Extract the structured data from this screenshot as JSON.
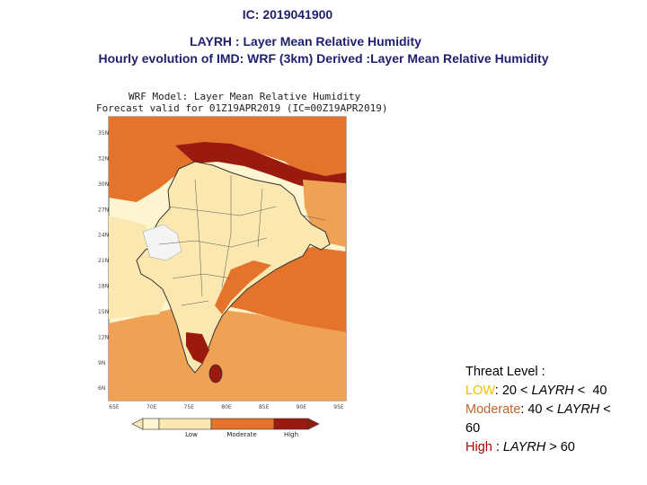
{
  "header": {
    "ic": "IC: 2019041900",
    "title1": "LAYRH : Layer Mean Relative Humidity",
    "title2": "Hourly evolution of IMD: WRF (3km) Derived :Layer Mean Relative Humidity"
  },
  "map": {
    "title_line1": "WRF Model: Layer Mean Relative Humidity",
    "title_line2": "Forecast valid for 01Z19APR2019 (IC=00Z19APR2019)",
    "lat_labels": [
      "35N",
      "32N",
      "30N",
      "27N",
      "24N",
      "21N",
      "18N",
      "15N",
      "12N",
      "9N",
      "6N"
    ],
    "lon_labels": [
      "65E",
      "70E",
      "75E",
      "80E",
      "85E",
      "90E",
      "95E"
    ],
    "legend": [
      {
        "label": "Low",
        "color": "#fbe8b0"
      },
      {
        "label": "Moderate",
        "color": "#e4742c"
      },
      {
        "label": "High",
        "color": "#9a1a10"
      }
    ],
    "colors": {
      "very_low": "#fff5d0",
      "low": "#f6d69a",
      "moderate": "#e4742c",
      "moderate_light": "#f0a254",
      "high": "#9a1a10",
      "dry_white": "#f4f4f4"
    }
  },
  "threat": {
    "heading": "Threat Level :",
    "low_word": "LOW",
    "low_rest": ": 20 < ",
    "var_name": "LAYRH",
    "low_end": " <  40",
    "mod_word": "Moderate",
    "mod_rest": ": 40 < ",
    "mod_end": " <",
    "mod_line2": "60",
    "high_word": "High",
    "high_rest": " : ",
    "high_end": " > 60"
  }
}
